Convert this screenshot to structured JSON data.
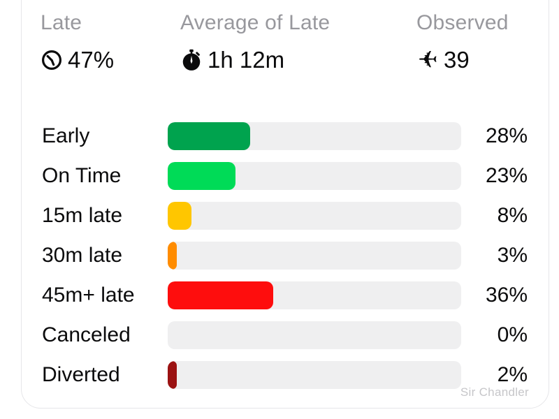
{
  "summary": {
    "stats": [
      {
        "label": "Late",
        "value": "47%",
        "icon": "clock-icon"
      },
      {
        "label": "Average of Late",
        "value": "1h 12m",
        "icon": "stopwatch-icon"
      },
      {
        "label": "Observed",
        "value": "39",
        "icon": "airplane-icon"
      }
    ]
  },
  "chart_data": {
    "type": "bar",
    "orientation": "horizontal",
    "categories": [
      "Early",
      "On Time",
      "15m late",
      "30m late",
      "45m+ late",
      "Canceled",
      "Diverted"
    ],
    "values": [
      28,
      23,
      8,
      3,
      36,
      0,
      2
    ],
    "value_labels": [
      "28%",
      "23%",
      "8%",
      "3%",
      "36%",
      "0%",
      "2%"
    ],
    "bar_colors": [
      "#00a34e",
      "#00db57",
      "#ffc600",
      "#ff8c00",
      "#fe0d0d",
      "#efeff0",
      "#9b1212"
    ],
    "track_color": "#efeff0",
    "xlim": [
      0,
      100
    ],
    "grid": false,
    "legend": "none"
  },
  "watermark": "Sir Chandler",
  "colors": {
    "header_gray": "#98989d",
    "text": "#0b0b0c",
    "card_border": "#e6e6e9",
    "track": "#efeff0"
  }
}
